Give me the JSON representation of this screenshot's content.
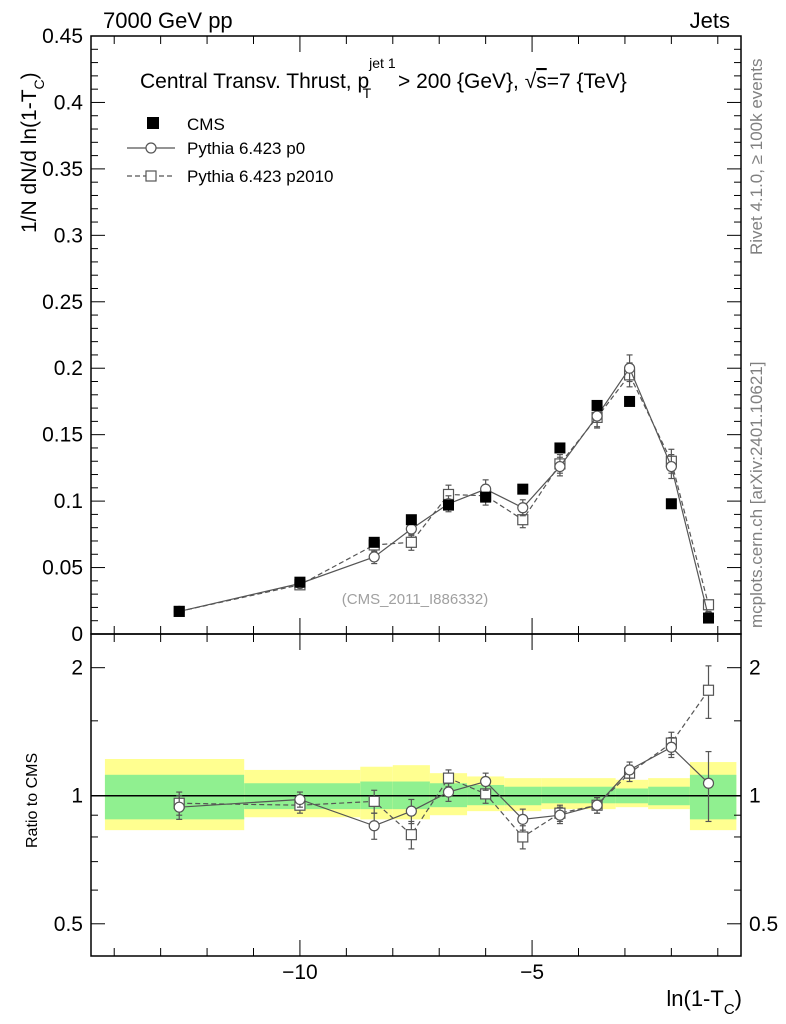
{
  "header": {
    "left": "7000 GeV pp",
    "right": "Jets"
  },
  "side_labels": {
    "rivet": "Rivet 4.1.0, ≥ 100k events",
    "mcplots": "mcplots.cern.ch [arXiv:2401.10621]"
  },
  "watermark": "(CMS_2011_I886332)",
  "colors": {
    "green_band": "#90f090",
    "yellow_band": "#ffff90",
    "data": "#000000",
    "mc": "#555555"
  },
  "chart_data": [
    {
      "type": "line",
      "title": "Central Transv. Thrust, p_T^{jet 1} > 200 {GeV}, √s=7 {TeV}",
      "title_parts": {
        "pre": "Central Transv. Thrust, p",
        "sup": "jet 1",
        "sub": "T",
        "mid": " > 200 {GeV}, ",
        "root": "√",
        "s": "s",
        "post": "=7 {TeV}"
      },
      "ylabel": {
        "pre": "1/N   dN/d ln(1-T",
        "sub": "C",
        "post": ")"
      },
      "xlim": [
        -14.5,
        -0.5
      ],
      "ylim": [
        0,
        0.45
      ],
      "yticks": [
        0,
        0.05,
        0.1,
        0.15,
        0.2,
        0.25,
        0.3,
        0.35,
        0.4,
        0.45
      ],
      "ytick_labels": [
        "0",
        "0.05",
        "0.1",
        "0.15",
        "0.2",
        "0.25",
        "0.3",
        "0.35",
        "0.4",
        "0.45"
      ],
      "legend": [
        "CMS",
        "Pythia 6.423 p0",
        "Pythia 6.423 p2010"
      ],
      "x": [
        -12.6,
        -10.0,
        -8.4,
        -7.6,
        -6.8,
        -6.0,
        -5.2,
        -4.4,
        -3.6,
        -2.9,
        -2.0,
        -1.2
      ],
      "series": [
        {
          "name": "CMS",
          "marker": "filled-square",
          "values": [
            0.017,
            0.039,
            0.069,
            0.086,
            0.097,
            0.103,
            0.109,
            0.14,
            0.172,
            0.175,
            0.098,
            0.012
          ]
        },
        {
          "name": "Pythia 6.423 p0",
          "marker": "open-circle",
          "style": "solid",
          "values": [
            0.017,
            0.038,
            0.058,
            0.079,
            0.098,
            0.109,
            0.095,
            0.126,
            0.164,
            0.2,
            0.126,
            0.013
          ],
          "errors": [
            0.001,
            0.002,
            0.005,
            0.005,
            0.006,
            0.007,
            0.006,
            0.007,
            0.008,
            0.01,
            0.009,
            0.004
          ]
        },
        {
          "name": "Pythia 6.423 p2010",
          "marker": "open-square",
          "style": "dashed",
          "values": [
            0.017,
            0.037,
            0.067,
            0.069,
            0.105,
            0.104,
            0.086,
            0.128,
            0.163,
            0.195,
            0.13,
            0.022
          ],
          "errors": [
            0.001,
            0.002,
            0.005,
            0.006,
            0.007,
            0.007,
            0.006,
            0.007,
            0.008,
            0.009,
            0.009,
            0.003
          ]
        }
      ]
    },
    {
      "type": "line",
      "title": "",
      "ylabel": "Ratio to CMS",
      "xlabel": {
        "pre": "ln(1-T",
        "sub": "C",
        "post": ")"
      },
      "yscale": "log",
      "ylim": [
        0.42,
        2.4
      ],
      "xlim": [
        -14.5,
        -0.5
      ],
      "xticks": [
        -10,
        -5
      ],
      "xtick_labels": [
        "−10",
        "−5"
      ],
      "yticks": [
        0.5,
        1,
        2
      ],
      "ytick_labels": [
        "0.5",
        "1",
        "2"
      ],
      "bands": {
        "edges": [
          -14.2,
          -11.2,
          -8.7,
          -8.0,
          -7.2,
          -6.4,
          -5.6,
          -4.8,
          -4.0,
          -3.2,
          -2.5,
          -1.6,
          -0.6
        ],
        "green": [
          [
            0.88,
            1.12
          ],
          [
            0.93,
            1.07
          ],
          [
            0.93,
            1.08
          ],
          [
            0.93,
            1.08
          ],
          [
            0.94,
            1.07
          ],
          [
            0.95,
            1.06
          ],
          [
            0.95,
            1.05
          ],
          [
            0.96,
            1.05
          ],
          [
            0.96,
            1.05
          ],
          [
            0.96,
            1.04
          ],
          [
            0.95,
            1.05
          ],
          [
            0.88,
            1.12
          ]
        ],
        "yellow": [
          [
            0.83,
            1.22
          ],
          [
            0.89,
            1.15
          ],
          [
            0.88,
            1.17
          ],
          [
            0.88,
            1.18
          ],
          [
            0.9,
            1.13
          ],
          [
            0.92,
            1.11
          ],
          [
            0.92,
            1.1
          ],
          [
            0.93,
            1.1
          ],
          [
            0.93,
            1.1
          ],
          [
            0.94,
            1.09
          ],
          [
            0.93,
            1.1
          ],
          [
            0.83,
            1.2
          ]
        ]
      },
      "x": [
        -12.6,
        -10.0,
        -8.4,
        -7.6,
        -6.8,
        -6.0,
        -5.2,
        -4.4,
        -3.6,
        -2.9,
        -2.0,
        -1.2
      ],
      "series": [
        {
          "name": "Pythia 6.423 p0",
          "marker": "open-circle",
          "style": "solid",
          "values": [
            0.94,
            0.98,
            0.85,
            0.92,
            1.02,
            1.08,
            0.88,
            0.9,
            0.95,
            1.15,
            1.3,
            1.07
          ],
          "errors": [
            0.06,
            0.04,
            0.06,
            0.06,
            0.05,
            0.05,
            0.05,
            0.04,
            0.04,
            0.05,
            0.07,
            0.2
          ]
        },
        {
          "name": "Pythia 6.423 p2010",
          "marker": "open-square",
          "style": "dashed",
          "values": [
            0.96,
            0.95,
            0.97,
            0.81,
            1.1,
            1.01,
            0.8,
            0.91,
            0.95,
            1.13,
            1.33,
            1.77
          ],
          "errors": [
            0.06,
            0.04,
            0.06,
            0.06,
            0.05,
            0.05,
            0.05,
            0.04,
            0.04,
            0.05,
            0.08,
            0.25
          ]
        }
      ]
    }
  ]
}
